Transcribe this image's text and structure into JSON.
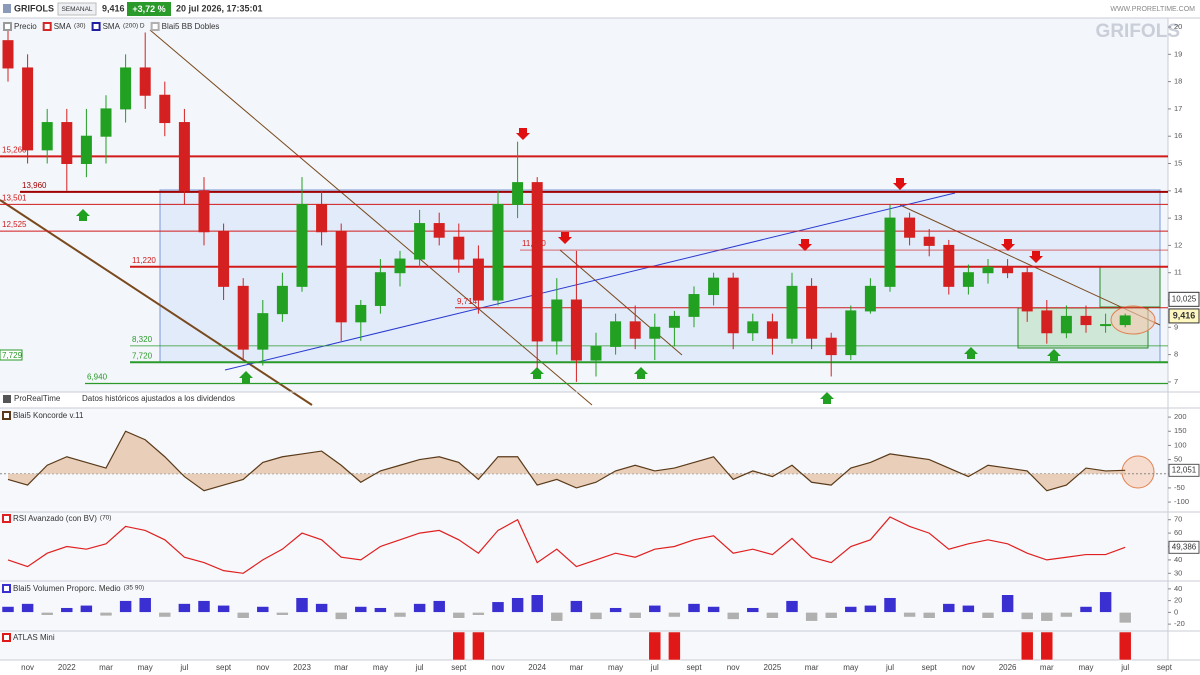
{
  "header": {
    "symbol": "GRIFOLS",
    "period": "SEMANAL",
    "price": "9,416",
    "change": "+3,72 %",
    "datetime": "20 jul 2026, 17:35:01",
    "website": "WWW.PRORELTIME.COM"
  },
  "watermark": "GRIFOLS",
  "footer_note": {
    "brand": "ProRealTime",
    "text": "Datos históricos ajustados a los dividendos"
  },
  "chart_data": [
    {
      "type": "candlestick",
      "legend": [
        {
          "name": "Precio",
          "color": "#9a9a9a"
        },
        {
          "name": "SMA",
          "params": "(30)",
          "color": "#d62728"
        },
        {
          "name": "SMA",
          "params": "(200) D",
          "color": "#1f1fa0"
        },
        {
          "name": "Blai5 BB Dobles",
          "color": "#b0b0b0"
        }
      ],
      "categories": [
        null,
        "nov",
        null,
        "2022",
        null,
        "mar",
        null,
        "may",
        null,
        "jul",
        null,
        "sept",
        null,
        "nov",
        null,
        "2023",
        null,
        "mar",
        null,
        "may",
        null,
        "jul",
        null,
        "sept",
        null,
        "nov",
        null,
        "2024",
        null,
        "mar",
        null,
        "may",
        null,
        "jul",
        null,
        "sept",
        null,
        "nov",
        null,
        "2025",
        null,
        "mar",
        null,
        "may",
        null,
        "jul",
        null,
        "sept",
        null,
        "nov",
        null,
        "2026",
        null,
        "mar",
        null,
        "may",
        null,
        "jul",
        null,
        "sept"
      ],
      "open": [
        19.5,
        18.5,
        15.5,
        16.5,
        15,
        16,
        17,
        18.5,
        17.5,
        16.5,
        14,
        12.5,
        10.5,
        8.2,
        9.5,
        10.5,
        13.5,
        12.5,
        9.2,
        9.8,
        11,
        11.5,
        12.8,
        12.3,
        11.5,
        10,
        13.5,
        14.3,
        8.5,
        10,
        7.8,
        8.3,
        9.2,
        8.6,
        9,
        9.4,
        10.2,
        10.8,
        8.8,
        9.2,
        8.6,
        10.5,
        8.6,
        8,
        9.6,
        10.5,
        13,
        12.3,
        12,
        10.5,
        11,
        11.2,
        11,
        9.6,
        8.8,
        9.4,
        9.1,
        9.1,
        null,
        null
      ],
      "high": [
        20,
        19,
        17,
        17,
        17,
        17.5,
        19,
        19.8,
        18,
        17,
        14.5,
        12.8,
        10.8,
        10,
        11,
        14.5,
        14,
        12.8,
        10,
        11.5,
        11.8,
        13.3,
        13.2,
        12.8,
        12,
        14,
        15.8,
        14.5,
        10.8,
        11.8,
        8.8,
        9.5,
        9.8,
        9.5,
        9.6,
        10.5,
        11,
        11,
        9.5,
        9.5,
        11,
        10.8,
        8.8,
        9.8,
        10.8,
        13.5,
        13.2,
        12.6,
        12.2,
        11.3,
        11.5,
        11.5,
        11.2,
        10,
        9.8,
        9.8,
        9.5,
        9.5,
        null,
        null
      ],
      "low": [
        18,
        15,
        15,
        14,
        14.5,
        15,
        16.5,
        17,
        16,
        13.5,
        12,
        10,
        7.8,
        7.6,
        9.2,
        10.3,
        12,
        8.5,
        8.5,
        9.5,
        10.5,
        11.2,
        12,
        11,
        9.5,
        9.8,
        13,
        7.5,
        8,
        7,
        7.2,
        8,
        8.2,
        7.8,
        8.3,
        9,
        9.8,
        8.2,
        8.5,
        8,
        8.4,
        8.2,
        7.2,
        7.8,
        9.5,
        10.3,
        12,
        11.6,
        10.2,
        10.2,
        10.6,
        10.8,
        9.2,
        8.4,
        8.6,
        8.8,
        8.8,
        9,
        null,
        null
      ],
      "close": [
        18.5,
        15.5,
        16.5,
        15,
        16,
        17,
        18.5,
        17.5,
        16.5,
        14,
        12.5,
        10.5,
        8.2,
        9.5,
        10.5,
        13.5,
        12.5,
        9.2,
        9.8,
        11,
        11.5,
        12.8,
        12.3,
        11.5,
        10,
        13.5,
        14.3,
        8.5,
        10,
        7.8,
        8.3,
        9.2,
        8.6,
        9,
        9.4,
        10.2,
        10.8,
        8.8,
        9.2,
        8.6,
        10.5,
        8.6,
        8,
        9.6,
        10.5,
        13,
        12.3,
        12,
        10.5,
        11,
        11.2,
        11,
        9.6,
        8.8,
        9.4,
        9.1,
        9.1,
        9.416,
        null,
        null
      ],
      "up_color": "#22a022",
      "down_color": "#d42020",
      "ylim": [
        6.63,
        20.33
      ],
      "yticks": [
        7,
        8,
        9,
        10,
        11,
        12,
        13,
        14,
        15,
        16,
        17,
        18,
        19,
        20
      ],
      "levels": [
        {
          "value": 15.26,
          "label": "15,260",
          "color": "#d11a1a"
        },
        {
          "value": 13.96,
          "label": "13,960",
          "color": "#a00000"
        },
        {
          "value": 13.501,
          "label": "13,501",
          "color": "#d11a1a"
        },
        {
          "value": 12.525,
          "label": "12,525",
          "color": "#d11a1a"
        },
        {
          "value": 11.22,
          "label": "11,220",
          "color": "#d11a1a"
        },
        {
          "value": 11.83,
          "label": "11,830",
          "color": "#d11a1a"
        },
        {
          "value": 9.714,
          "label": "9,714",
          "color": "#d11a1a"
        },
        {
          "value": 8.32,
          "label": "8,320",
          "color": "#2a9a2a"
        },
        {
          "value": 7.72,
          "label": "7,720",
          "color": "#2a9a2a"
        },
        {
          "value": 7.729,
          "label": "7,729",
          "color": "#2a9a2a"
        },
        {
          "value": 6.94,
          "label": "6,940",
          "color": "#2a9a2a"
        }
      ],
      "tags": [
        {
          "value": 10.025,
          "label": "10,025"
        },
        {
          "value": 9.416,
          "label": "9,416"
        }
      ]
    },
    {
      "type": "area",
      "title": "Blai5 Koncorde v.11",
      "values": [
        -20,
        -40,
        30,
        60,
        40,
        20,
        150,
        120,
        60,
        -10,
        -60,
        -40,
        -20,
        40,
        60,
        70,
        80,
        30,
        -30,
        10,
        30,
        50,
        60,
        40,
        -20,
        60,
        60,
        -40,
        -20,
        -50,
        -30,
        10,
        30,
        10,
        20,
        40,
        60,
        -20,
        10,
        -10,
        30,
        -30,
        -40,
        20,
        40,
        70,
        60,
        50,
        20,
        -10,
        30,
        20,
        10,
        -60,
        -40,
        20,
        10,
        12.051,
        null,
        null
      ],
      "color": "#5a3a1a",
      "fill": "#e6c8ad",
      "ylim": [
        -135,
        225
      ],
      "yticks": [
        200,
        150,
        100,
        50,
        0,
        -50,
        -100
      ],
      "tag": {
        "value": 12.051,
        "label": "12,051"
      }
    },
    {
      "type": "line",
      "title": "RSI Avanzado (con BV)",
      "params": "(70)",
      "values": [
        40,
        35,
        45,
        50,
        48,
        52,
        65,
        62,
        55,
        42,
        38,
        32,
        30,
        40,
        48,
        60,
        55,
        42,
        40,
        50,
        55,
        60,
        62,
        55,
        45,
        62,
        70,
        38,
        48,
        35,
        40,
        45,
        42,
        48,
        50,
        55,
        58,
        45,
        48,
        44,
        56,
        42,
        38,
        50,
        55,
        72,
        65,
        60,
        48,
        52,
        55,
        52,
        45,
        40,
        42,
        44,
        44,
        49.386,
        null,
        null
      ],
      "color": "#e02020",
      "ylim": [
        25,
        75
      ],
      "yticks": [
        70,
        60,
        50,
        40,
        30
      ],
      "tag": {
        "value": 49.386,
        "label": "49,386"
      }
    },
    {
      "type": "bar",
      "title": "Blai5 Volumen Proporc. Medio",
      "params": "(35 90)",
      "values": [
        10,
        15,
        -5,
        8,
        12,
        -6,
        20,
        25,
        -8,
        15,
        20,
        12,
        -10,
        10,
        -5,
        25,
        15,
        -12,
        10,
        8,
        -8,
        15,
        20,
        -10,
        -5,
        18,
        25,
        30,
        -15,
        20,
        -12,
        8,
        -10,
        12,
        -8,
        15,
        10,
        -12,
        8,
        -10,
        20,
        -15,
        -10,
        10,
        12,
        25,
        -8,
        -10,
        15,
        12,
        -10,
        30,
        -12,
        -15,
        -8,
        10,
        35,
        -18,
        null,
        null
      ],
      "color": "#3a2fd0",
      "negative_color": "#b0b0b0",
      "ylim": [
        -30,
        50
      ],
      "yticks": [
        40,
        20,
        0,
        -20
      ]
    },
    {
      "type": "bar",
      "title": "ATLAS Mini",
      "values": [
        0,
        0,
        0,
        0,
        0,
        0,
        0,
        0,
        0,
        0,
        0,
        0,
        0,
        0,
        0,
        0,
        0,
        0,
        0,
        0,
        0,
        0,
        0,
        1,
        1,
        0,
        0,
        0,
        0,
        0,
        0,
        0,
        0,
        1,
        1,
        0,
        0,
        0,
        0,
        0,
        0,
        0,
        0,
        0,
        0,
        0,
        0,
        0,
        0,
        0,
        0,
        0,
        1,
        1,
        0,
        0,
        0,
        1,
        null,
        null
      ],
      "color": "#e01818",
      "ylim": [
        0,
        1
      ]
    }
  ]
}
